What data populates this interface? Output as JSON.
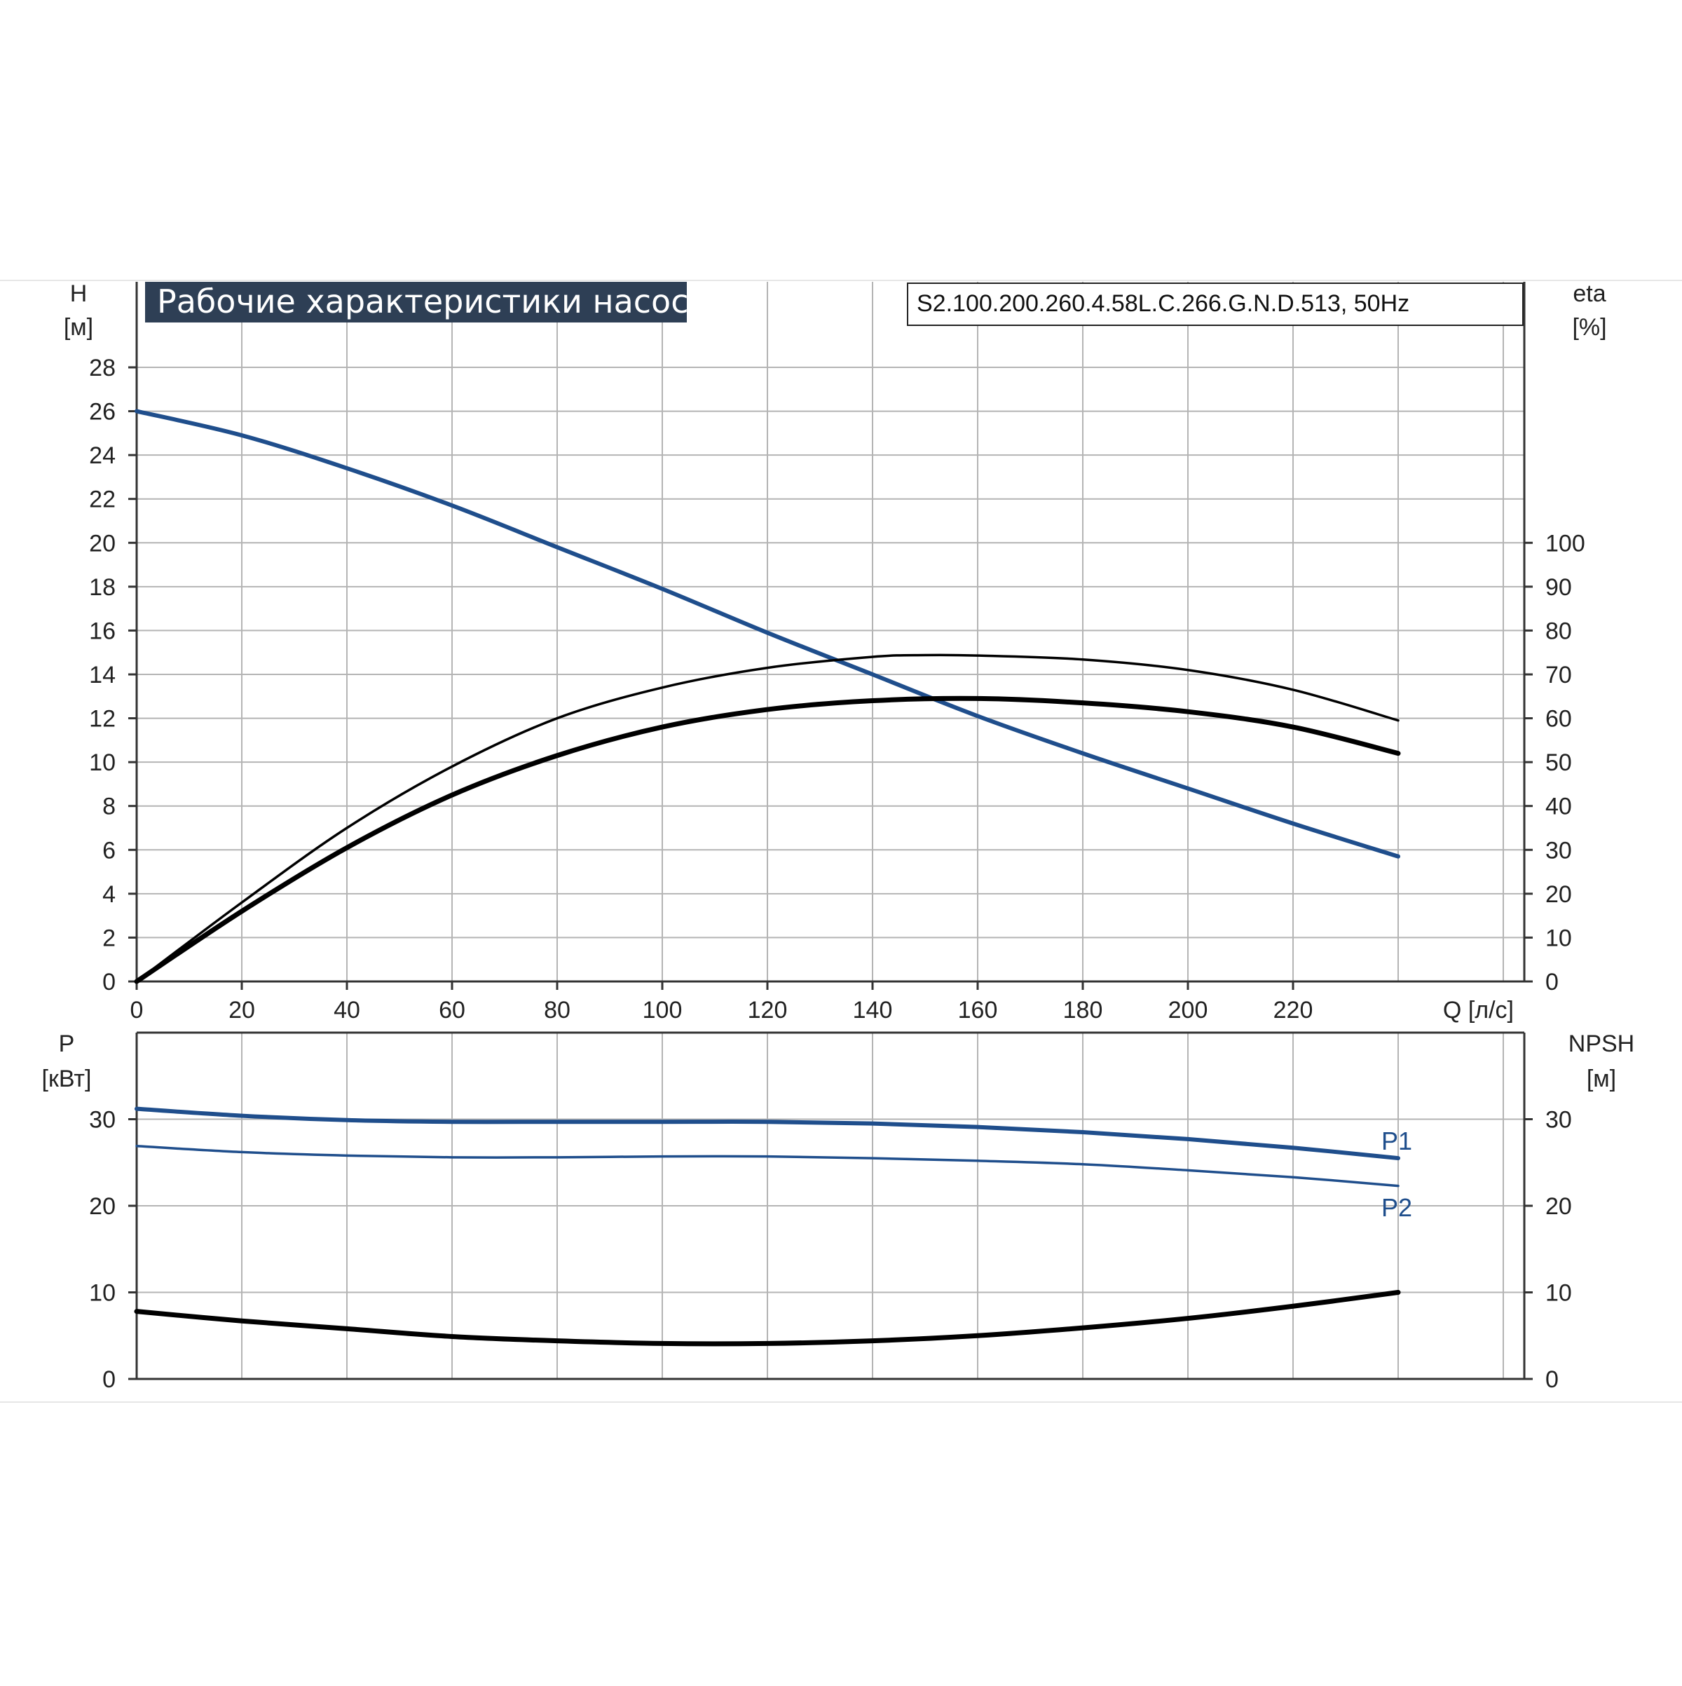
{
  "colors": {
    "head_curve": "#1f4e8c",
    "power_curve": "#1f4e8c",
    "efficiency_curve": "#000000",
    "npsh_curve": "#000000",
    "grid": "#b4b4b4",
    "title_bg": "#2e3f55",
    "title_text": "#ffffff"
  },
  "chart_data": [
    {
      "type": "line",
      "title": "Рабочие характеристики насоса",
      "model": "S2.100.200.260.4.58L.C.266.G.N.D.513, 50Hz",
      "x_label": "Q [л/с]",
      "x_ticks": [
        "0",
        "20",
        "40",
        "60",
        "80",
        "100",
        "120",
        "140",
        "160",
        "180",
        "200",
        "220"
      ],
      "x_range": [
        0,
        264
      ],
      "y_left_label_top": "H",
      "y_left_label_unit": "[м]",
      "y_left_ticks": [
        "0",
        "2",
        "4",
        "6",
        "8",
        "10",
        "12",
        "14",
        "16",
        "18",
        "20",
        "22",
        "24",
        "26",
        "28"
      ],
      "y_left_range": [
        0,
        28
      ],
      "y_right_label_top": "eta",
      "y_right_label_unit": "[%]",
      "y_right_ticks": [
        "0",
        "10",
        "20",
        "30",
        "40",
        "50",
        "60",
        "70",
        "80",
        "90",
        "100"
      ],
      "y_right_range": [
        0,
        140
      ],
      "grid": true,
      "series": [
        {
          "axis": "left",
          "x": [
            0,
            20,
            40,
            60,
            80,
            100,
            120,
            140,
            160,
            180,
            200,
            220,
            240
          ],
          "y": [
            26.0,
            24.9,
            23.4,
            21.7,
            19.8,
            17.9,
            15.9,
            14.0,
            12.1,
            10.4,
            8.8,
            7.2,
            5.7
          ]
        },
        {
          "axis": "right",
          "x": [
            0,
            20,
            40,
            60,
            80,
            100,
            120,
            140,
            150,
            160,
            180,
            200,
            220,
            240
          ],
          "y": [
            0,
            18,
            35,
            49,
            60,
            67,
            71.5,
            74,
            74.4,
            74.3,
            73.4,
            71,
            66.5,
            59.5
          ]
        },
        {
          "axis": "right",
          "x": [
            0,
            20,
            40,
            60,
            80,
            100,
            120,
            140,
            160,
            180,
            200,
            220,
            240
          ],
          "y": [
            0,
            16,
            30.5,
            42.5,
            51.5,
            58,
            62,
            64,
            64.5,
            63.5,
            61.5,
            58,
            52
          ]
        }
      ]
    },
    {
      "type": "line",
      "x_range": [
        0,
        264
      ],
      "y_left_label_top": "P",
      "y_left_label_unit": "[кВт]",
      "y_left_ticks": [
        "0",
        "10",
        "20",
        "30"
      ],
      "y_left_range": [
        0,
        40
      ],
      "y_right_label_top": "NPSH",
      "y_right_label_unit": "[м]",
      "y_right_ticks": [
        "0",
        "10",
        "20",
        "30"
      ],
      "y_right_range": [
        0,
        40
      ],
      "grid": true,
      "series": [
        {
          "name": "P1",
          "axis": "left",
          "x": [
            0,
            20,
            40,
            60,
            80,
            100,
            120,
            140,
            160,
            180,
            200,
            220,
            240
          ],
          "y": [
            31.2,
            30.4,
            29.9,
            29.7,
            29.7,
            29.7,
            29.7,
            29.5,
            29.1,
            28.5,
            27.7,
            26.7,
            25.5
          ]
        },
        {
          "name": "P2",
          "axis": "left",
          "x": [
            0,
            20,
            40,
            60,
            80,
            100,
            120,
            140,
            160,
            180,
            200,
            220,
            240
          ],
          "y": [
            26.9,
            26.2,
            25.8,
            25.6,
            25.6,
            25.7,
            25.7,
            25.5,
            25.2,
            24.8,
            24.1,
            23.3,
            22.3
          ]
        },
        {
          "axis": "right",
          "x": [
            0,
            20,
            40,
            60,
            80,
            100,
            120,
            140,
            160,
            180,
            200,
            220,
            240
          ],
          "y": [
            7.8,
            6.7,
            5.8,
            4.9,
            4.4,
            4.1,
            4.1,
            4.4,
            5.0,
            5.9,
            7.0,
            8.4,
            10.0
          ]
        }
      ]
    }
  ]
}
